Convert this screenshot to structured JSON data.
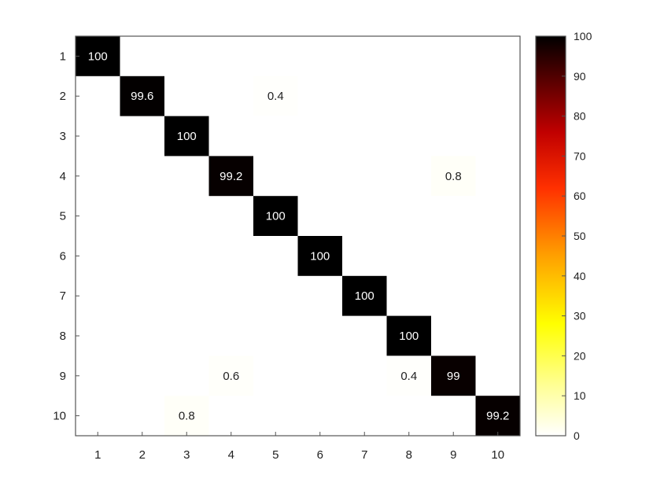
{
  "chart_data": {
    "type": "heatmap",
    "title": "",
    "xlabel": "",
    "ylabel": "",
    "x_categories": [
      "1",
      "2",
      "3",
      "4",
      "5",
      "6",
      "7",
      "8",
      "9",
      "10"
    ],
    "y_categories": [
      "1",
      "2",
      "3",
      "4",
      "5",
      "6",
      "7",
      "8",
      "9",
      "10"
    ],
    "cells": [
      {
        "row": "1",
        "col": "1",
        "value": 100,
        "label": "100"
      },
      {
        "row": "2",
        "col": "2",
        "value": 99.6,
        "label": "99.6"
      },
      {
        "row": "2",
        "col": "5",
        "value": 0.4,
        "label": "0.4"
      },
      {
        "row": "3",
        "col": "3",
        "value": 100,
        "label": "100"
      },
      {
        "row": "4",
        "col": "4",
        "value": 99.2,
        "label": "99.2"
      },
      {
        "row": "4",
        "col": "9",
        "value": 0.8,
        "label": "0.8"
      },
      {
        "row": "5",
        "col": "5",
        "value": 100,
        "label": "100"
      },
      {
        "row": "6",
        "col": "6",
        "value": 100,
        "label": "100"
      },
      {
        "row": "7",
        "col": "7",
        "value": 100,
        "label": "100"
      },
      {
        "row": "8",
        "col": "8",
        "value": 100,
        "label": "100"
      },
      {
        "row": "9",
        "col": "4",
        "value": 0.6,
        "label": "0.6"
      },
      {
        "row": "9",
        "col": "8",
        "value": 0.4,
        "label": "0.4"
      },
      {
        "row": "9",
        "col": "9",
        "value": 99,
        "label": "99"
      },
      {
        "row": "10",
        "col": "3",
        "value": 0.8,
        "label": "0.8"
      },
      {
        "row": "10",
        "col": "10",
        "value": 99.2,
        "label": "99.2"
      }
    ],
    "colorbar": {
      "colormap": "hot-reversed",
      "range": [
        0,
        100
      ],
      "ticks": [
        "0",
        "10",
        "20",
        "30",
        "40",
        "50",
        "60",
        "70",
        "80",
        "90",
        "100"
      ]
    },
    "grid": false,
    "legend": "colorbar-right"
  }
}
